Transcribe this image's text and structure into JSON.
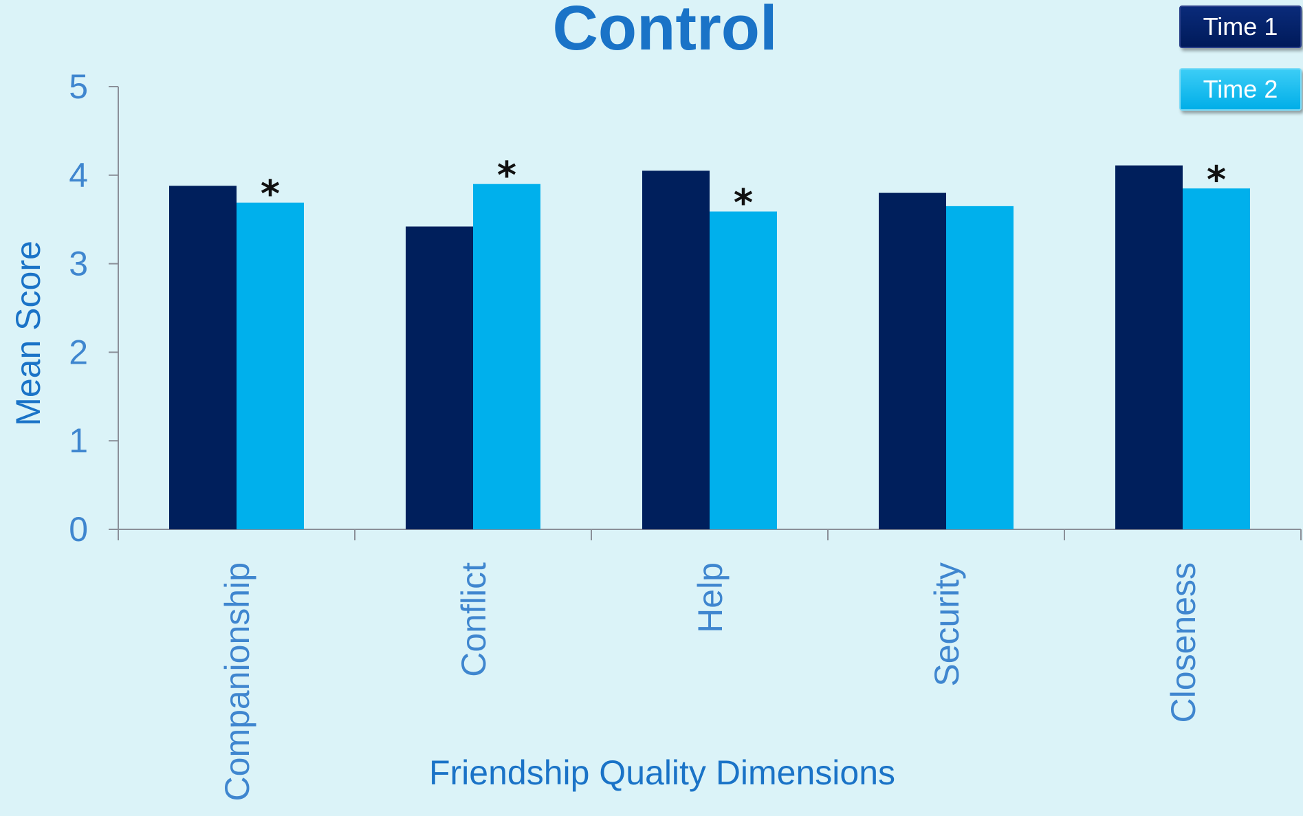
{
  "chart_data": {
    "type": "bar",
    "title": "Control",
    "xlabel": "Friendship Quality Dimensions",
    "ylabel": "Mean Score",
    "ylim": [
      0,
      5
    ],
    "yticks": [
      "0",
      "1",
      "2",
      "3",
      "4",
      "5"
    ],
    "categories": [
      "Companionship",
      "Conflict",
      "Help",
      "Security",
      "Closeness"
    ],
    "series": [
      {
        "name": "Time 1",
        "color": "#001f5c",
        "values": [
          3.88,
          3.42,
          4.05,
          3.8,
          4.11
        ]
      },
      {
        "name": "Time 2",
        "color": "#00b0ec",
        "values": [
          3.69,
          3.9,
          3.59,
          3.65,
          3.85
        ]
      }
    ],
    "annotations": [
      {
        "category": "Companionship",
        "series": "Time 2",
        "text": "*"
      },
      {
        "category": "Conflict",
        "series": "Time 2",
        "text": "*"
      },
      {
        "category": "Help",
        "series": "Time 2",
        "text": "*"
      },
      {
        "category": "Closeness",
        "series": "Time 2",
        "text": "*"
      }
    ],
    "grid": false,
    "legend_position": "top-right"
  }
}
